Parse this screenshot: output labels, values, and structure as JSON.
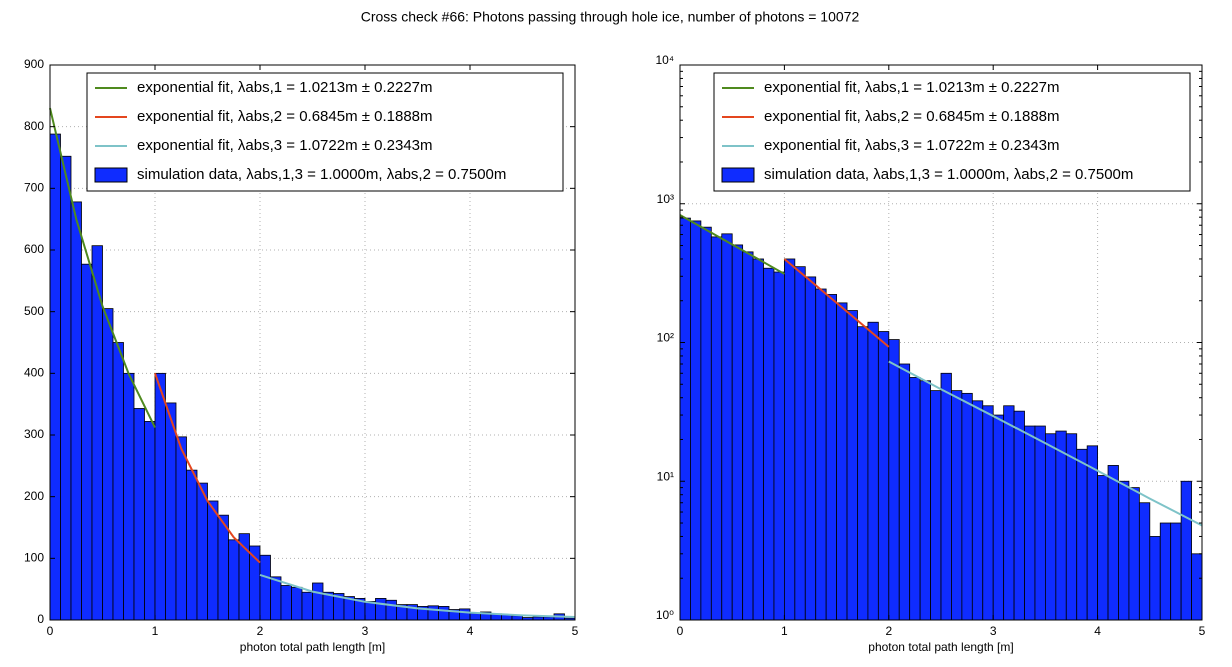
{
  "title": "Cross check #66: Photons passing through hole ice, number of photons = 10072",
  "chart_data": [
    {
      "type": "histogram",
      "log_scale": false,
      "grid": true,
      "legend": "upper right",
      "xlabel": "photon total path length [m]",
      "name": "simulation data, λabs,1,3 = 1.0000m, λabs,2 = 0.7500m",
      "color": "#0f2cff",
      "bins": [
        0,
        0.1,
        0.2,
        0.3,
        0.4,
        0.5,
        0.6,
        0.7,
        0.8,
        0.9,
        1,
        1.1,
        1.2,
        1.3,
        1.4,
        1.5,
        1.6,
        1.7,
        1.8,
        1.9,
        2,
        2.1,
        2.2,
        2.3,
        2.4,
        2.5,
        2.6,
        2.7,
        2.8,
        2.9,
        3,
        3.1,
        3.2,
        3.3,
        3.4,
        3.5,
        3.6,
        3.7,
        3.8,
        3.9,
        4,
        4.1,
        4.2,
        4.3,
        4.4,
        4.5,
        4.6,
        4.7,
        4.8,
        4.9,
        5
      ],
      "counts": [
        788,
        752,
        678,
        577,
        607,
        505,
        450,
        400,
        343,
        322,
        400,
        352,
        297,
        243,
        222,
        193,
        170,
        130,
        140,
        120,
        105,
        70,
        56,
        53,
        45,
        60,
        45,
        43,
        38,
        35,
        30,
        35,
        32,
        25,
        25,
        22,
        23,
        22,
        17,
        18,
        11,
        13,
        10,
        9,
        7,
        4,
        5,
        5,
        10,
        3
      ],
      "series": [
        {
          "name": "exponential fit, λabs,1 = 1.0213m ± 0.2227m",
          "color": "#4f8a1e",
          "x": [
            0,
            0.25,
            0.5,
            0.75,
            1
          ],
          "values": [
            830,
            650,
            509,
            399,
            312
          ]
        },
        {
          "name": "exponential fit, λabs,2 = 0.6845m ± 0.1888m",
          "color": "#e4461e",
          "x": [
            1,
            1.25,
            1.5,
            1.75,
            2
          ],
          "values": [
            400,
            278,
            193,
            134,
            93
          ]
        },
        {
          "name": "exponential fit, λabs,3 = 1.0722m ± 0.2343m",
          "color": "#7ec3c8",
          "x": [
            2,
            2.5,
            3,
            3.5,
            4,
            4.5,
            5
          ],
          "values": [
            73,
            46,
            29.5,
            18.8,
            11.9,
            7.5,
            4.8
          ]
        }
      ],
      "xlim": [
        0,
        5
      ],
      "xticks": [
        0,
        1,
        2,
        3,
        4,
        5
      ],
      "ylim": [
        0,
        900
      ],
      "yticks": [
        0,
        100,
        200,
        300,
        400,
        500,
        600,
        700,
        800,
        900
      ]
    },
    {
      "type": "histogram",
      "log_scale": true,
      "grid": true,
      "legend": "upper right",
      "xlabel": "photon total path length [m]",
      "name": "simulation data, λabs,1,3 = 1.0000m, λabs,2 = 0.7500m",
      "color": "#0f2cff",
      "bins": [
        0,
        0.1,
        0.2,
        0.3,
        0.4,
        0.5,
        0.6,
        0.7,
        0.8,
        0.9,
        1,
        1.1,
        1.2,
        1.3,
        1.4,
        1.5,
        1.6,
        1.7,
        1.8,
        1.9,
        2,
        2.1,
        2.2,
        2.3,
        2.4,
        2.5,
        2.6,
        2.7,
        2.8,
        2.9,
        3,
        3.1,
        3.2,
        3.3,
        3.4,
        3.5,
        3.6,
        3.7,
        3.8,
        3.9,
        4,
        4.1,
        4.2,
        4.3,
        4.4,
        4.5,
        4.6,
        4.7,
        4.8,
        4.9,
        5
      ],
      "counts": [
        788,
        752,
        678,
        577,
        607,
        505,
        450,
        400,
        343,
        322,
        400,
        352,
        297,
        243,
        222,
        193,
        170,
        130,
        140,
        120,
        105,
        70,
        56,
        53,
        45,
        60,
        45,
        43,
        38,
        35,
        30,
        35,
        32,
        25,
        25,
        22,
        23,
        22,
        17,
        18,
        11,
        13,
        10,
        9,
        7,
        4,
        5,
        5,
        10,
        3
      ],
      "series": [
        {
          "name": "exponential fit, λabs,1 = 1.0213m ± 0.2227m",
          "color": "#4f8a1e",
          "x": [
            0,
            0.25,
            0.5,
            0.75,
            1
          ],
          "values": [
            830,
            650,
            509,
            399,
            312
          ]
        },
        {
          "name": "exponential fit, λabs,2 = 0.6845m ± 0.1888m",
          "color": "#e4461e",
          "x": [
            1,
            1.25,
            1.5,
            1.75,
            2
          ],
          "values": [
            400,
            278,
            193,
            134,
            93
          ]
        },
        {
          "name": "exponential fit, λabs,3 = 1.0722m ± 0.2343m",
          "color": "#7ec3c8",
          "x": [
            2,
            2.5,
            3,
            3.5,
            4,
            4.5,
            5
          ],
          "values": [
            73,
            46,
            29.5,
            18.8,
            11.9,
            7.5,
            4.8
          ]
        }
      ],
      "xlim": [
        0,
        5
      ],
      "xticks": [
        0,
        1,
        2,
        3,
        4,
        5
      ],
      "ylim": [
        1,
        10000
      ],
      "yticks": [
        {
          "value": 1,
          "label": "10⁰"
        },
        {
          "value": 10,
          "label": "10¹"
        },
        {
          "value": 100,
          "label": "10²"
        },
        {
          "value": 1000,
          "label": "10³"
        },
        {
          "value": 10000,
          "label": "10⁴"
        }
      ]
    }
  ]
}
